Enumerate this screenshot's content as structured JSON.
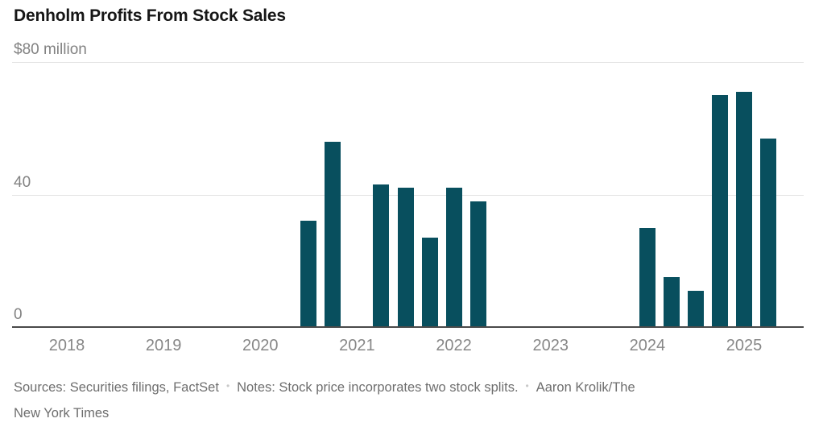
{
  "chart_data": {
    "type": "bar",
    "title": "Denholm Profits From Stock Sales",
    "unit": "$ million",
    "ylim": [
      0,
      80
    ],
    "grid": "horizontal",
    "legend_position": "none",
    "bar_color": "#084F5E",
    "grid_color": "#e4e4e4",
    "axis_color": "#4a4a4a",
    "y_ticks": [
      {
        "value": 0,
        "label": "0"
      },
      {
        "value": 40,
        "label": "40"
      },
      {
        "value": 80,
        "label": "$80 million"
      }
    ],
    "x_years": [
      2018,
      2019,
      2020,
      2021,
      2022,
      2023,
      2024,
      2025
    ],
    "bars": [
      {
        "period": "2020 Q3",
        "t": 2020.5,
        "value": 32
      },
      {
        "period": "2020 Q4",
        "t": 2020.75,
        "value": 56
      },
      {
        "period": "2021 Q2",
        "t": 2021.25,
        "value": 43
      },
      {
        "period": "2021 Q3",
        "t": 2021.5,
        "value": 42
      },
      {
        "period": "2021 Q4",
        "t": 2021.75,
        "value": 27
      },
      {
        "period": "2022 Q1",
        "t": 2022.0,
        "value": 42
      },
      {
        "period": "2022 Q2",
        "t": 2022.25,
        "value": 38
      },
      {
        "period": "2024 Q1",
        "t": 2024.0,
        "value": 30
      },
      {
        "period": "2024 Q2",
        "t": 2024.25,
        "value": 15
      },
      {
        "period": "2024 Q3",
        "t": 2024.5,
        "value": 11
      },
      {
        "period": "2024 Q4",
        "t": 2024.75,
        "value": 70
      },
      {
        "period": "2025 Q1",
        "t": 2025.0,
        "value": 71
      },
      {
        "period": "2025 Q2",
        "t": 2025.25,
        "value": 57
      }
    ]
  },
  "footer": {
    "sources": "Sources: Securities filings, FactSet",
    "notes": "Notes: Stock price incorporates two stock splits.",
    "credit_line1": "Aaron Krolik/The",
    "credit_line2": "New York Times",
    "separator": "•"
  }
}
